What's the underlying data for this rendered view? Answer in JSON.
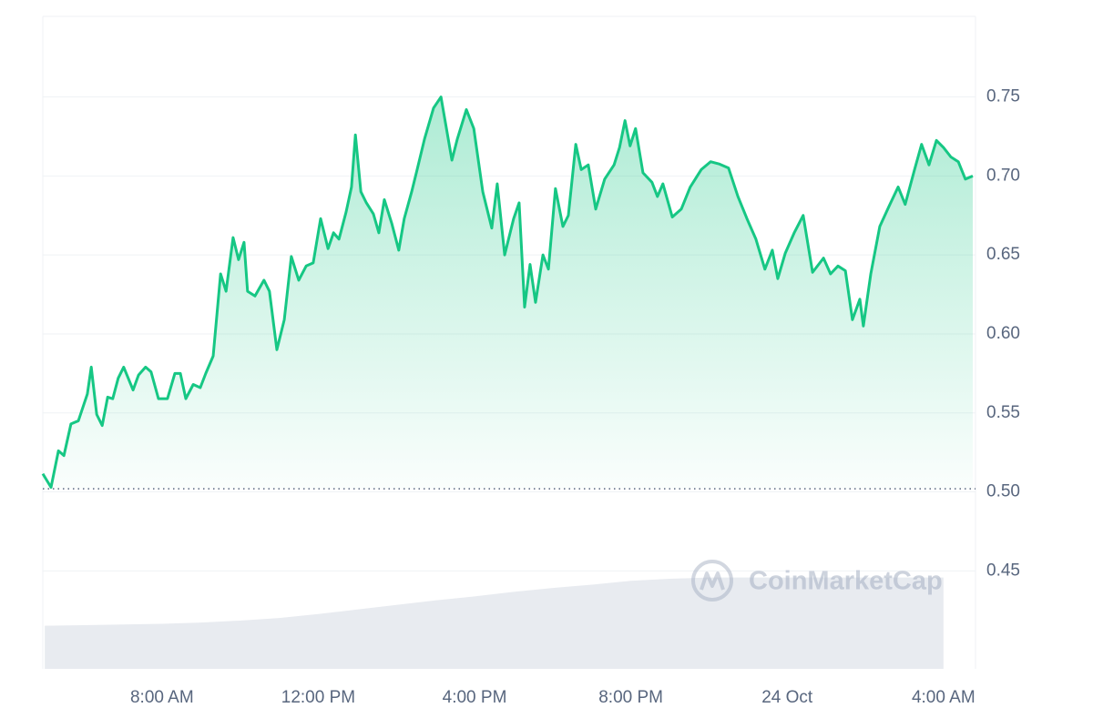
{
  "chart_data": {
    "type": "line",
    "color": "#16c784",
    "x": [
      4.95,
      5.16,
      5.35,
      5.49,
      5.67,
      5.86,
      6.09,
      6.19,
      6.33,
      6.47,
      6.61,
      6.74,
      6.88,
      7.02,
      7.26,
      7.4,
      7.58,
      7.72,
      7.91,
      8.14,
      8.33,
      8.47,
      8.61,
      8.8,
      8.98,
      9.12,
      9.31,
      9.5,
      9.64,
      9.82,
      9.96,
      10.1,
      10.19,
      10.38,
      10.61,
      10.75,
      10.94,
      11.13,
      11.31,
      11.5,
      11.69,
      11.87,
      12.06,
      12.25,
      12.39,
      12.53,
      12.71,
      12.85,
      12.95,
      13.09,
      13.23,
      13.41,
      13.55,
      13.69,
      13.88,
      14.06,
      14.2,
      14.39,
      14.53,
      14.72,
      14.95,
      15.14,
      15.28,
      15.42,
      15.56,
      15.79,
      15.98,
      16.21,
      16.44,
      16.58,
      16.77,
      17.0,
      17.14,
      17.28,
      17.42,
      17.56,
      17.75,
      17.89,
      18.07,
      18.26,
      18.4,
      18.59,
      18.73,
      18.91,
      19.1,
      19.33,
      19.57,
      19.71,
      19.85,
      19.98,
      20.12,
      20.31,
      20.54,
      20.68,
      20.82,
      21.06,
      21.29,
      21.52,
      21.8,
      22.04,
      22.27,
      22.5,
      22.74,
      22.97,
      23.2,
      23.43,
      23.62,
      23.76,
      23.95,
      24.18,
      24.41,
      24.65,
      24.93,
      25.11,
      25.3,
      25.49,
      25.67,
      25.86,
      25.95,
      26.14,
      26.37,
      26.61,
      26.84,
      27.02,
      27.26,
      27.44,
      27.63,
      27.82,
      28.0,
      28.19,
      28.38,
      28.56,
      28.75
    ],
    "values": [
      0.5115,
      0.5029,
      0.526,
      0.523,
      0.543,
      0.545,
      0.562,
      0.579,
      0.549,
      0.542,
      0.56,
      0.559,
      0.572,
      0.579,
      0.5645,
      0.574,
      0.579,
      0.576,
      0.559,
      0.559,
      0.575,
      0.575,
      0.559,
      0.568,
      0.566,
      0.575,
      0.586,
      0.638,
      0.627,
      0.661,
      0.647,
      0.658,
      0.627,
      0.624,
      0.634,
      0.627,
      0.59,
      0.609,
      0.649,
      0.634,
      0.643,
      0.645,
      0.673,
      0.654,
      0.664,
      0.66,
      0.677,
      0.693,
      0.726,
      0.69,
      0.683,
      0.676,
      0.664,
      0.685,
      0.67,
      0.653,
      0.673,
      0.69,
      0.704,
      0.7235,
      0.743,
      0.75,
      0.73,
      0.71,
      0.7235,
      0.742,
      0.73,
      0.69,
      0.667,
      0.695,
      0.65,
      0.673,
      0.683,
      0.617,
      0.644,
      0.62,
      0.65,
      0.641,
      0.692,
      0.668,
      0.675,
      0.72,
      0.704,
      0.707,
      0.679,
      0.698,
      0.707,
      0.718,
      0.735,
      0.719,
      0.73,
      0.702,
      0.696,
      0.687,
      0.695,
      0.674,
      0.679,
      0.693,
      0.704,
      0.709,
      0.7075,
      0.705,
      0.687,
      0.673,
      0.66,
      0.641,
      0.653,
      0.635,
      0.651,
      0.664,
      0.675,
      0.639,
      0.648,
      0.638,
      0.643,
      0.64,
      0.609,
      0.622,
      0.605,
      0.638,
      0.668,
      0.681,
      0.693,
      0.682,
      0.704,
      0.72,
      0.707,
      0.7225,
      0.718,
      0.712,
      0.709,
      0.698,
      0.7
    ],
    "baseline": 0.502,
    "xlim": [
      4.95,
      28.82
    ],
    "xticks": [
      {
        "value": 8,
        "label": "8:00 AM"
      },
      {
        "value": 12,
        "label": "12:00 PM"
      },
      {
        "value": 16,
        "label": "4:00 PM"
      },
      {
        "value": 20,
        "label": "8:00 PM"
      },
      {
        "value": 24,
        "label": "24 Oct"
      },
      {
        "value": 28,
        "label": "4:00 AM"
      }
    ],
    "ylim": [
      0.388,
      0.801
    ],
    "yticks": [
      0.45,
      {
        "value": 0.5,
        "label": "0.50"
      },
      0.55,
      {
        "value": 0.6,
        "label": "0.60"
      },
      0.65,
      {
        "value": 0.7,
        "label": "0.70"
      },
      0.75
    ],
    "grid": true,
    "volume": {
      "color": "#e8ebf0",
      "x": [
        5,
        6,
        7,
        8,
        9,
        10,
        11,
        12,
        13,
        14,
        15,
        16,
        17,
        18,
        19,
        20,
        21,
        22,
        23,
        24,
        25,
        26,
        27,
        28
      ],
      "values": [
        6.6,
        6.7,
        6.8,
        6.9,
        7.1,
        7.4,
        7.8,
        8.4,
        9.1,
        9.8,
        10.5,
        11.1,
        11.8,
        12.4,
        12.9,
        13.5,
        13.8,
        14.0,
        14.0,
        14.0,
        14.0,
        14.0,
        14.0,
        14.0
      ]
    },
    "y2lim": [
      0,
      100
    ],
    "watermark": "CoinMarketCap"
  }
}
